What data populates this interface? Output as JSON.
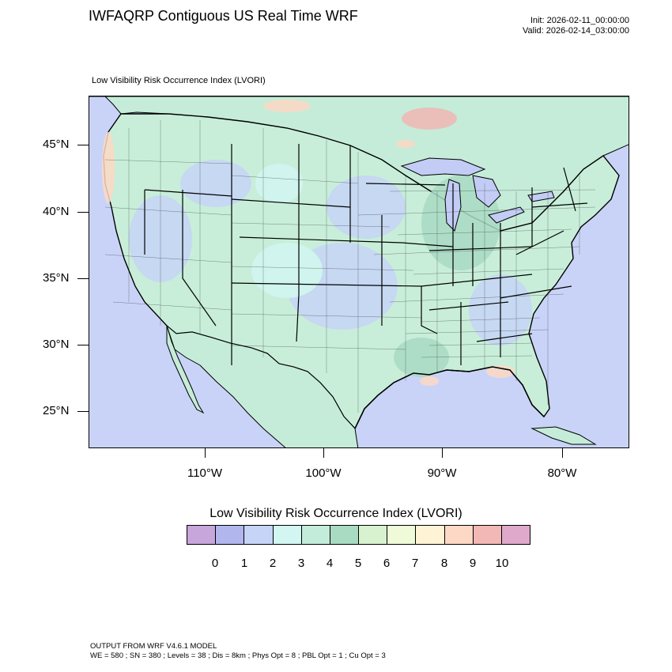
{
  "header": {
    "title": "IWFAQRP Contiguous US Real Time WRF",
    "init": "Init: 2026-02-11_00:00:00",
    "valid": "Valid: 2026-02-14_03:00:00"
  },
  "map": {
    "field_title": "Low Visibility Risk Occurrence Index   (LVORI)",
    "lat_labels": [
      "45°N",
      "40°N",
      "35°N",
      "30°N",
      "25°N"
    ],
    "lon_labels": [
      "110°W",
      "100°W",
      "90°W",
      "80°W"
    ],
    "colors": {
      "ocean": "#c9d3f7",
      "land_base": "#c5ecd8",
      "water_lake": "#c2ccf5"
    }
  },
  "legend": {
    "title": "Low Visibility Risk Occurrence Index  (LVORI)",
    "labels": [
      "0",
      "1",
      "2",
      "3",
      "4",
      "5",
      "6",
      "7",
      "8",
      "9",
      "10"
    ],
    "colors": [
      "#c7a6dc",
      "#b1b6ec",
      "#c6d5f7",
      "#d2f6f2",
      "#c4ecdb",
      "#a9dbc3",
      "#d8f2cf",
      "#eefad8",
      "#fef4d5",
      "#fdd9c5",
      "#f1b8b5",
      "#dfa9cc"
    ]
  },
  "footer": {
    "line1": "OUTPUT FROM WRF V4.6.1 MODEL",
    "line2": "WE = 580 ; SN = 380 ; Levels = 38 ; Dis = 8km ; Phys Opt = 8 ; PBL Opt = 1 ; Cu Opt = 3"
  }
}
